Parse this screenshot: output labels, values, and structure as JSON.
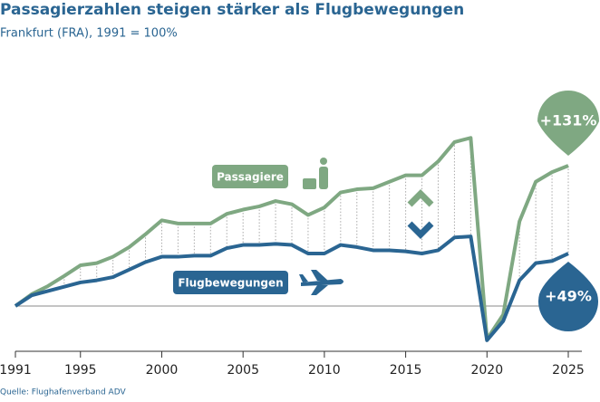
{
  "chart_data": {
    "type": "line",
    "title": "Passagierzahlen steigen stärker als Flugbewegungen",
    "subtitle": "Frankfurt (FRA), 1991 = 100%",
    "source": "Quelle: Flughafenverband ADV",
    "x": [
      1991,
      1992,
      1993,
      1994,
      1995,
      1996,
      1997,
      1998,
      1999,
      2000,
      2001,
      2002,
      2003,
      2004,
      2005,
      2006,
      2007,
      2008,
      2009,
      2010,
      2011,
      2012,
      2013,
      2014,
      2015,
      2016,
      2017,
      2018,
      2019,
      2020,
      2021,
      2022,
      2023,
      2024,
      2025
    ],
    "series": [
      {
        "name": "Passagiere",
        "color": "#7fa882",
        "values": [
          100,
          111,
          118.6,
          128,
          138,
          140,
          146,
          155,
          167,
          180,
          177,
          177,
          177,
          186,
          190,
          193,
          198,
          195,
          185,
          192,
          206,
          209,
          210,
          216,
          222,
          222,
          235,
          253,
          257,
          69,
          92,
          179,
          216,
          225,
          231
        ]
      },
      {
        "name": "Flugbewegungen",
        "color": "#2a6592",
        "values": [
          100,
          110,
          114,
          118,
          122,
          124,
          127,
          134,
          141,
          146,
          146,
          147,
          147,
          154,
          157,
          157,
          158,
          157,
          149,
          149,
          157,
          155,
          152,
          152,
          151,
          149,
          152,
          164,
          165,
          68,
          86,
          124,
          140,
          142,
          149
        ]
      }
    ],
    "annotations": [
      "+131%",
      "+49%"
    ],
    "baseline": 100,
    "xlim": [
      1991,
      2025
    ],
    "xticks": [
      1991,
      1995,
      2000,
      2005,
      2010,
      2015,
      2020,
      2025
    ],
    "ylim": [
      60,
      260
    ]
  }
}
